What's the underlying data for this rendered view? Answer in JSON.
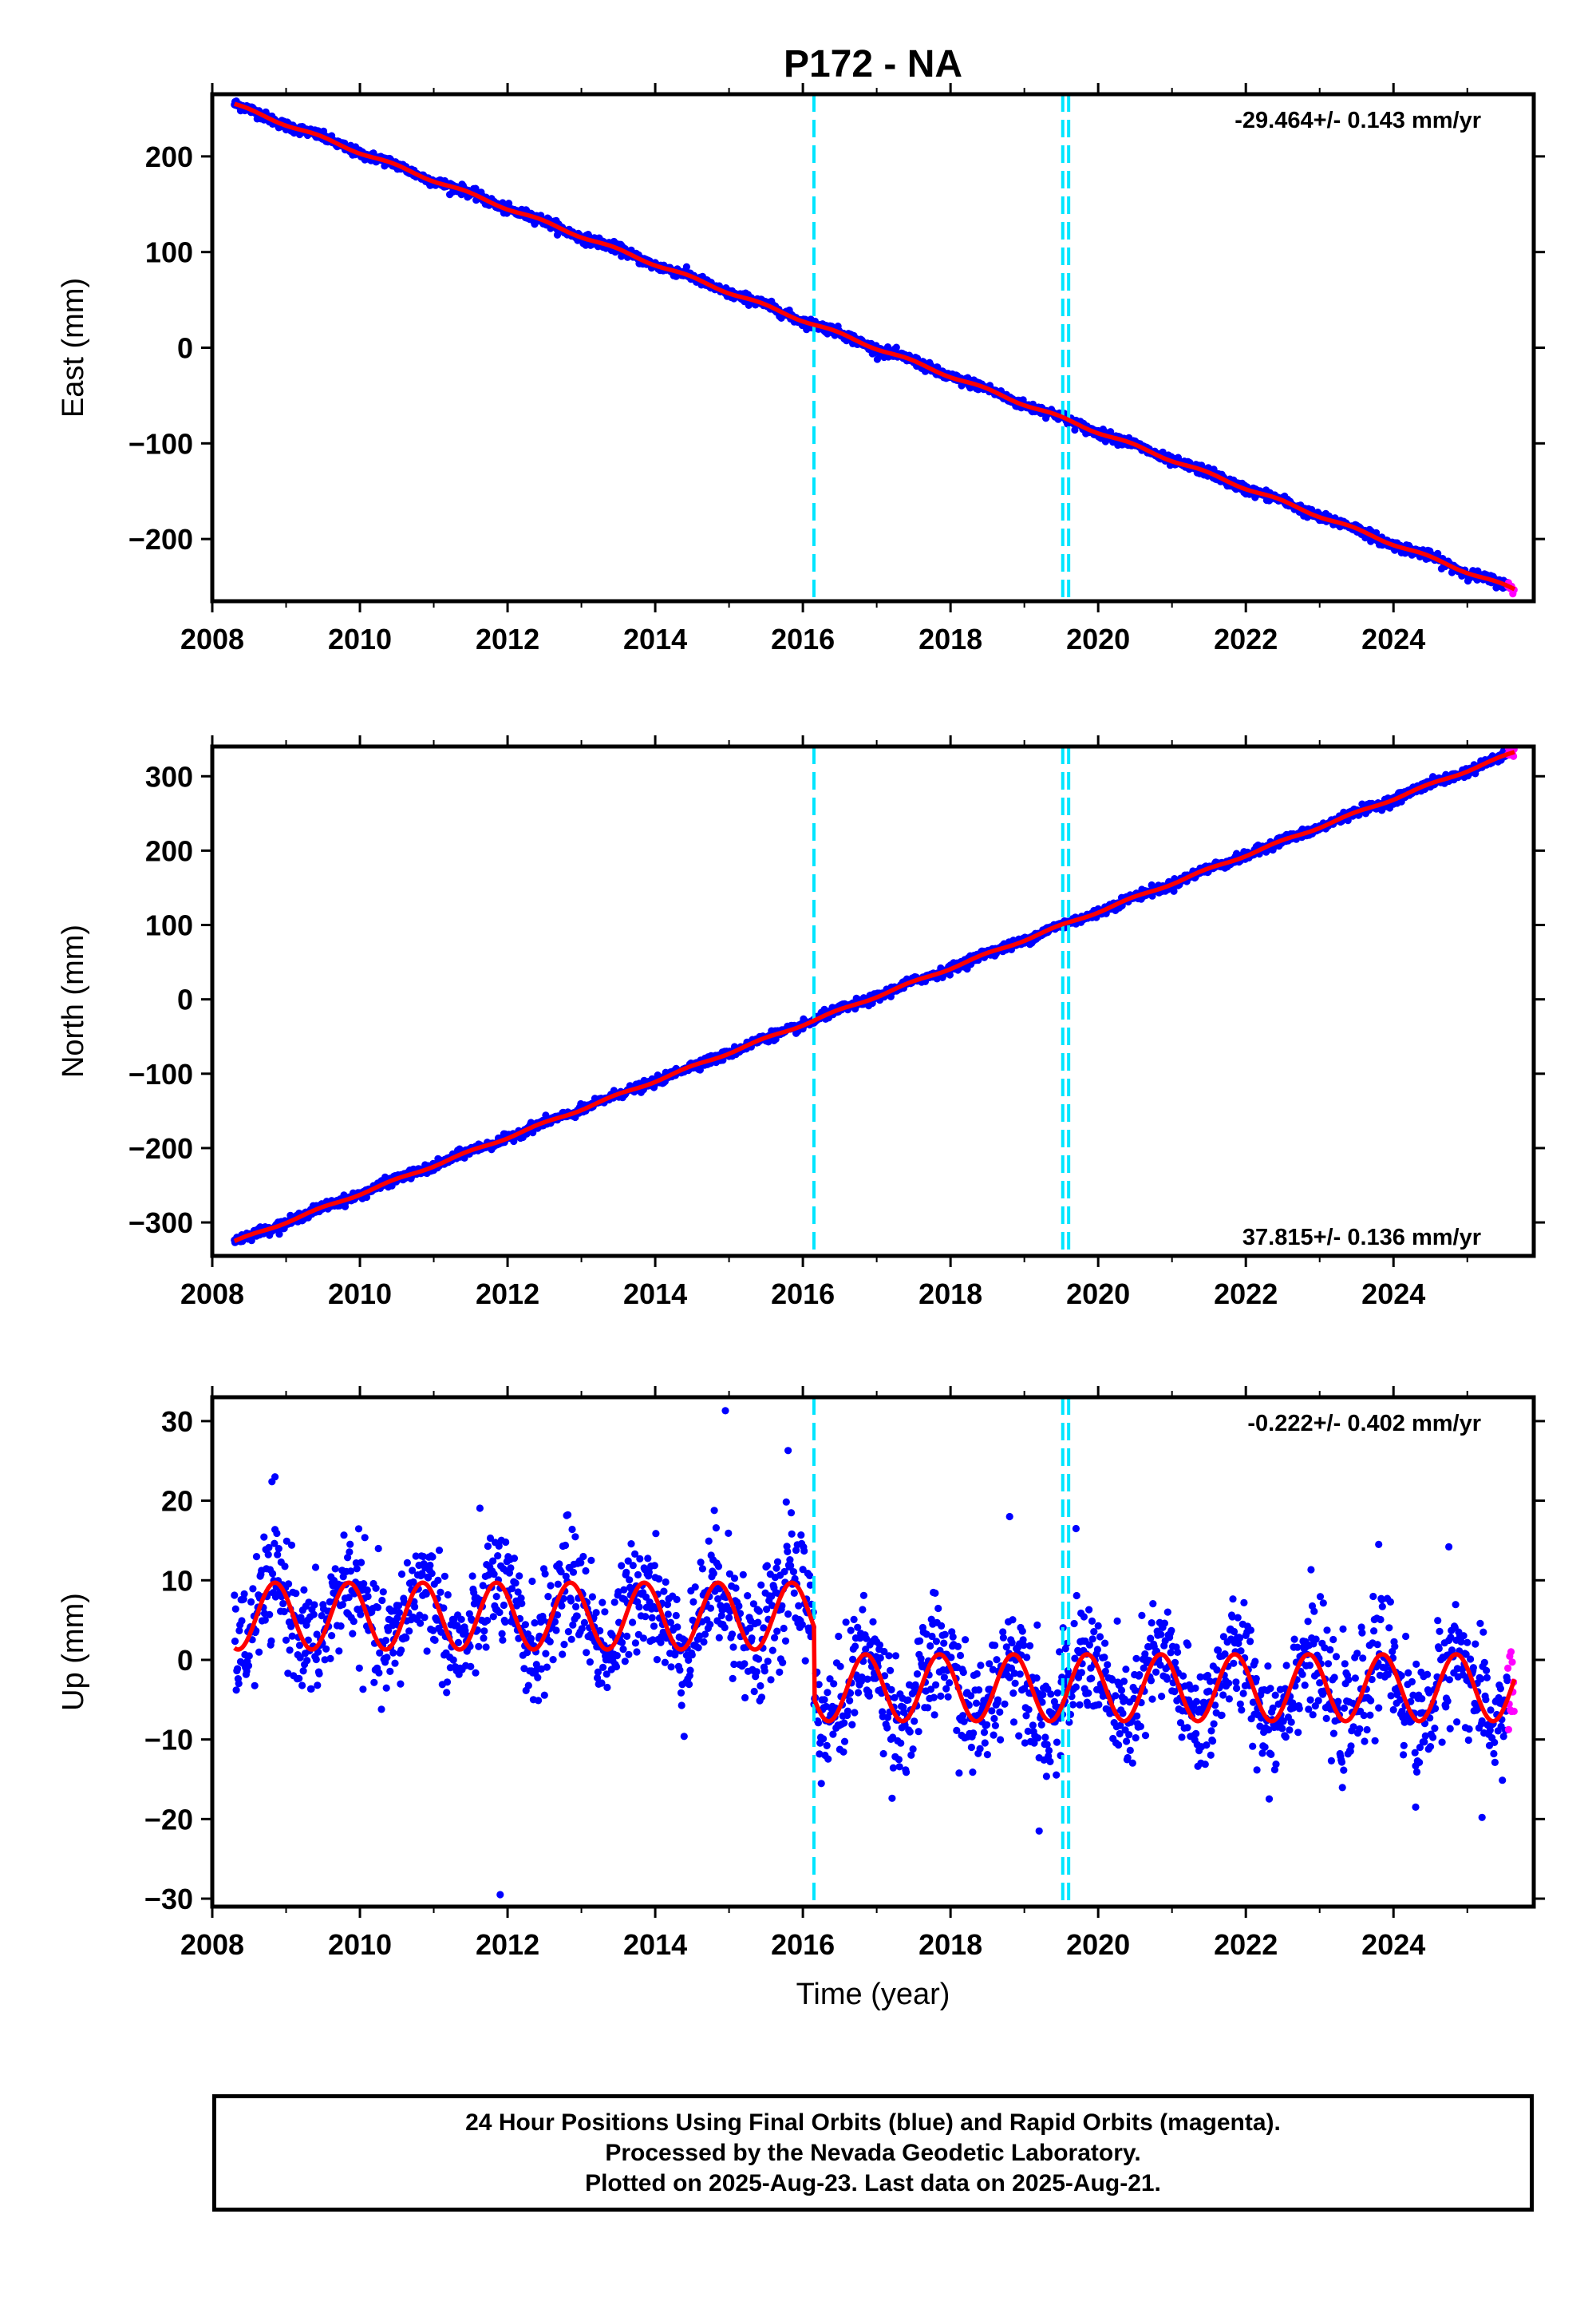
{
  "title": "P172 - NA",
  "colors": {
    "final_orbits": "#0000ff",
    "rapid_orbits": "#ff00ff",
    "model_fit": "#ff0000",
    "offset_lines": "#00e5ff",
    "axis": "#000000"
  },
  "footer": {
    "line1": "24 Hour Positions Using Final Orbits (blue) and Rapid Orbits (magenta).",
    "line2": "Processed by the Nevada Geodetic Laboratory.",
    "line3": "Plotted on 2025-Aug-23. Last data on 2025-Aug-21."
  },
  "chart_data": [
    {
      "type": "scatter",
      "ylabel": "East (mm)",
      "xlabel": "",
      "rate_label": "-29.464+/- 0.143 mm/yr",
      "rate_position": "top-right",
      "xlim": [
        2008.0,
        2025.9
      ],
      "ylim": [
        -265,
        265
      ],
      "x_ticks": [
        "2008",
        "2010",
        "2012",
        "2014",
        "2016",
        "2018",
        "2020",
        "2022",
        "2024"
      ],
      "y_ticks": [
        "200",
        "100",
        "0",
        "−100",
        "−200"
      ],
      "y_tick_values": [
        200,
        100,
        0,
        -100,
        -200
      ],
      "offset_epochs": [
        2016.15,
        2019.52,
        2019.6
      ],
      "start": {
        "x": 2008.3,
        "y": 254
      },
      "end": {
        "x": 2025.64,
        "y": -253
      },
      "trend_mm_per_yr": -29.464,
      "scatter_mm": 2.5,
      "rapid_orbit_epochs": [
        2025.55,
        2025.64
      ],
      "series": [
        {
          "name": "Final Orbits (blue)",
          "role": "daily_positions"
        },
        {
          "name": "Rapid Orbits (magenta)",
          "role": "rapid_positions"
        },
        {
          "name": "",
          "role": "model_fit"
        }
      ]
    },
    {
      "type": "scatter",
      "ylabel": "North (mm)",
      "xlabel": "",
      "rate_label": "37.815+/- 0.136 mm/yr",
      "rate_position": "bottom-right",
      "xlim": [
        2008.0,
        2025.9
      ],
      "ylim": [
        -345,
        340
      ],
      "x_ticks": [
        "2008",
        "2010",
        "2012",
        "2014",
        "2016",
        "2018",
        "2020",
        "2022",
        "2024"
      ],
      "y_ticks": [
        "300",
        "200",
        "100",
        "0",
        "−100",
        "−200",
        "−300"
      ],
      "y_tick_values": [
        300,
        200,
        100,
        0,
        -100,
        -200,
        -300
      ],
      "offset_epochs": [
        2016.15,
        2019.52,
        2019.6
      ],
      "start": {
        "x": 2008.3,
        "y": -326
      },
      "end": {
        "x": 2025.64,
        "y": 332
      },
      "trend_mm_per_yr": 37.815,
      "scatter_mm": 3,
      "rapid_orbit_epochs": [
        2025.55,
        2025.64
      ],
      "series": [
        {
          "name": "Final Orbits (blue)",
          "role": "daily_positions"
        },
        {
          "name": "Rapid Orbits (magenta)",
          "role": "rapid_positions"
        },
        {
          "name": "",
          "role": "model_fit"
        }
      ]
    },
    {
      "type": "scatter",
      "ylabel": "Up (mm)",
      "xlabel": "Time (year)",
      "rate_label": "-0.222+/- 0.402 mm/yr",
      "rate_position": "top-right",
      "xlim": [
        2008.0,
        2025.9
      ],
      "ylim": [
        -31,
        33
      ],
      "x_ticks": [
        "2008",
        "2010",
        "2012",
        "2014",
        "2016",
        "2018",
        "2020",
        "2022",
        "2024"
      ],
      "y_ticks": [
        "30",
        "20",
        "10",
        "0",
        "−10",
        "−20",
        "−30"
      ],
      "y_tick_values": [
        30,
        20,
        10,
        0,
        -10,
        -20,
        -30
      ],
      "offset_epochs": [
        2016.15,
        2019.52,
        2019.6
      ],
      "annual_amplitude_mm": 4.2,
      "annual_peak_phase_yr": 0.85,
      "level_before_2016_mm": 5.5,
      "level_after_2016_mm": -3.5,
      "scatter_mm": 3.6,
      "rapid_orbit_epochs": [
        2025.55,
        2025.64
      ],
      "outliers": [
        {
          "x": 2014.95,
          "y": 31.3
        },
        {
          "x": 2011.9,
          "y": -29.5
        },
        {
          "x": 2008.85,
          "y": 23
        },
        {
          "x": 2015.8,
          "y": 26.3
        },
        {
          "x": 2019.7,
          "y": 16.5
        },
        {
          "x": 2018.8,
          "y": 18
        },
        {
          "x": 2019.2,
          "y": -21.5
        },
        {
          "x": 2024.3,
          "y": -18.5
        },
        {
          "x": 2025.2,
          "y": -19.8
        },
        {
          "x": 2023.8,
          "y": 14.5
        },
        {
          "x": 2024.75,
          "y": 14.2
        }
      ],
      "series": [
        {
          "name": "Final Orbits (blue)",
          "role": "daily_positions"
        },
        {
          "name": "Rapid Orbits (magenta)",
          "role": "rapid_positions"
        },
        {
          "name": "",
          "role": "model_fit"
        }
      ]
    }
  ]
}
